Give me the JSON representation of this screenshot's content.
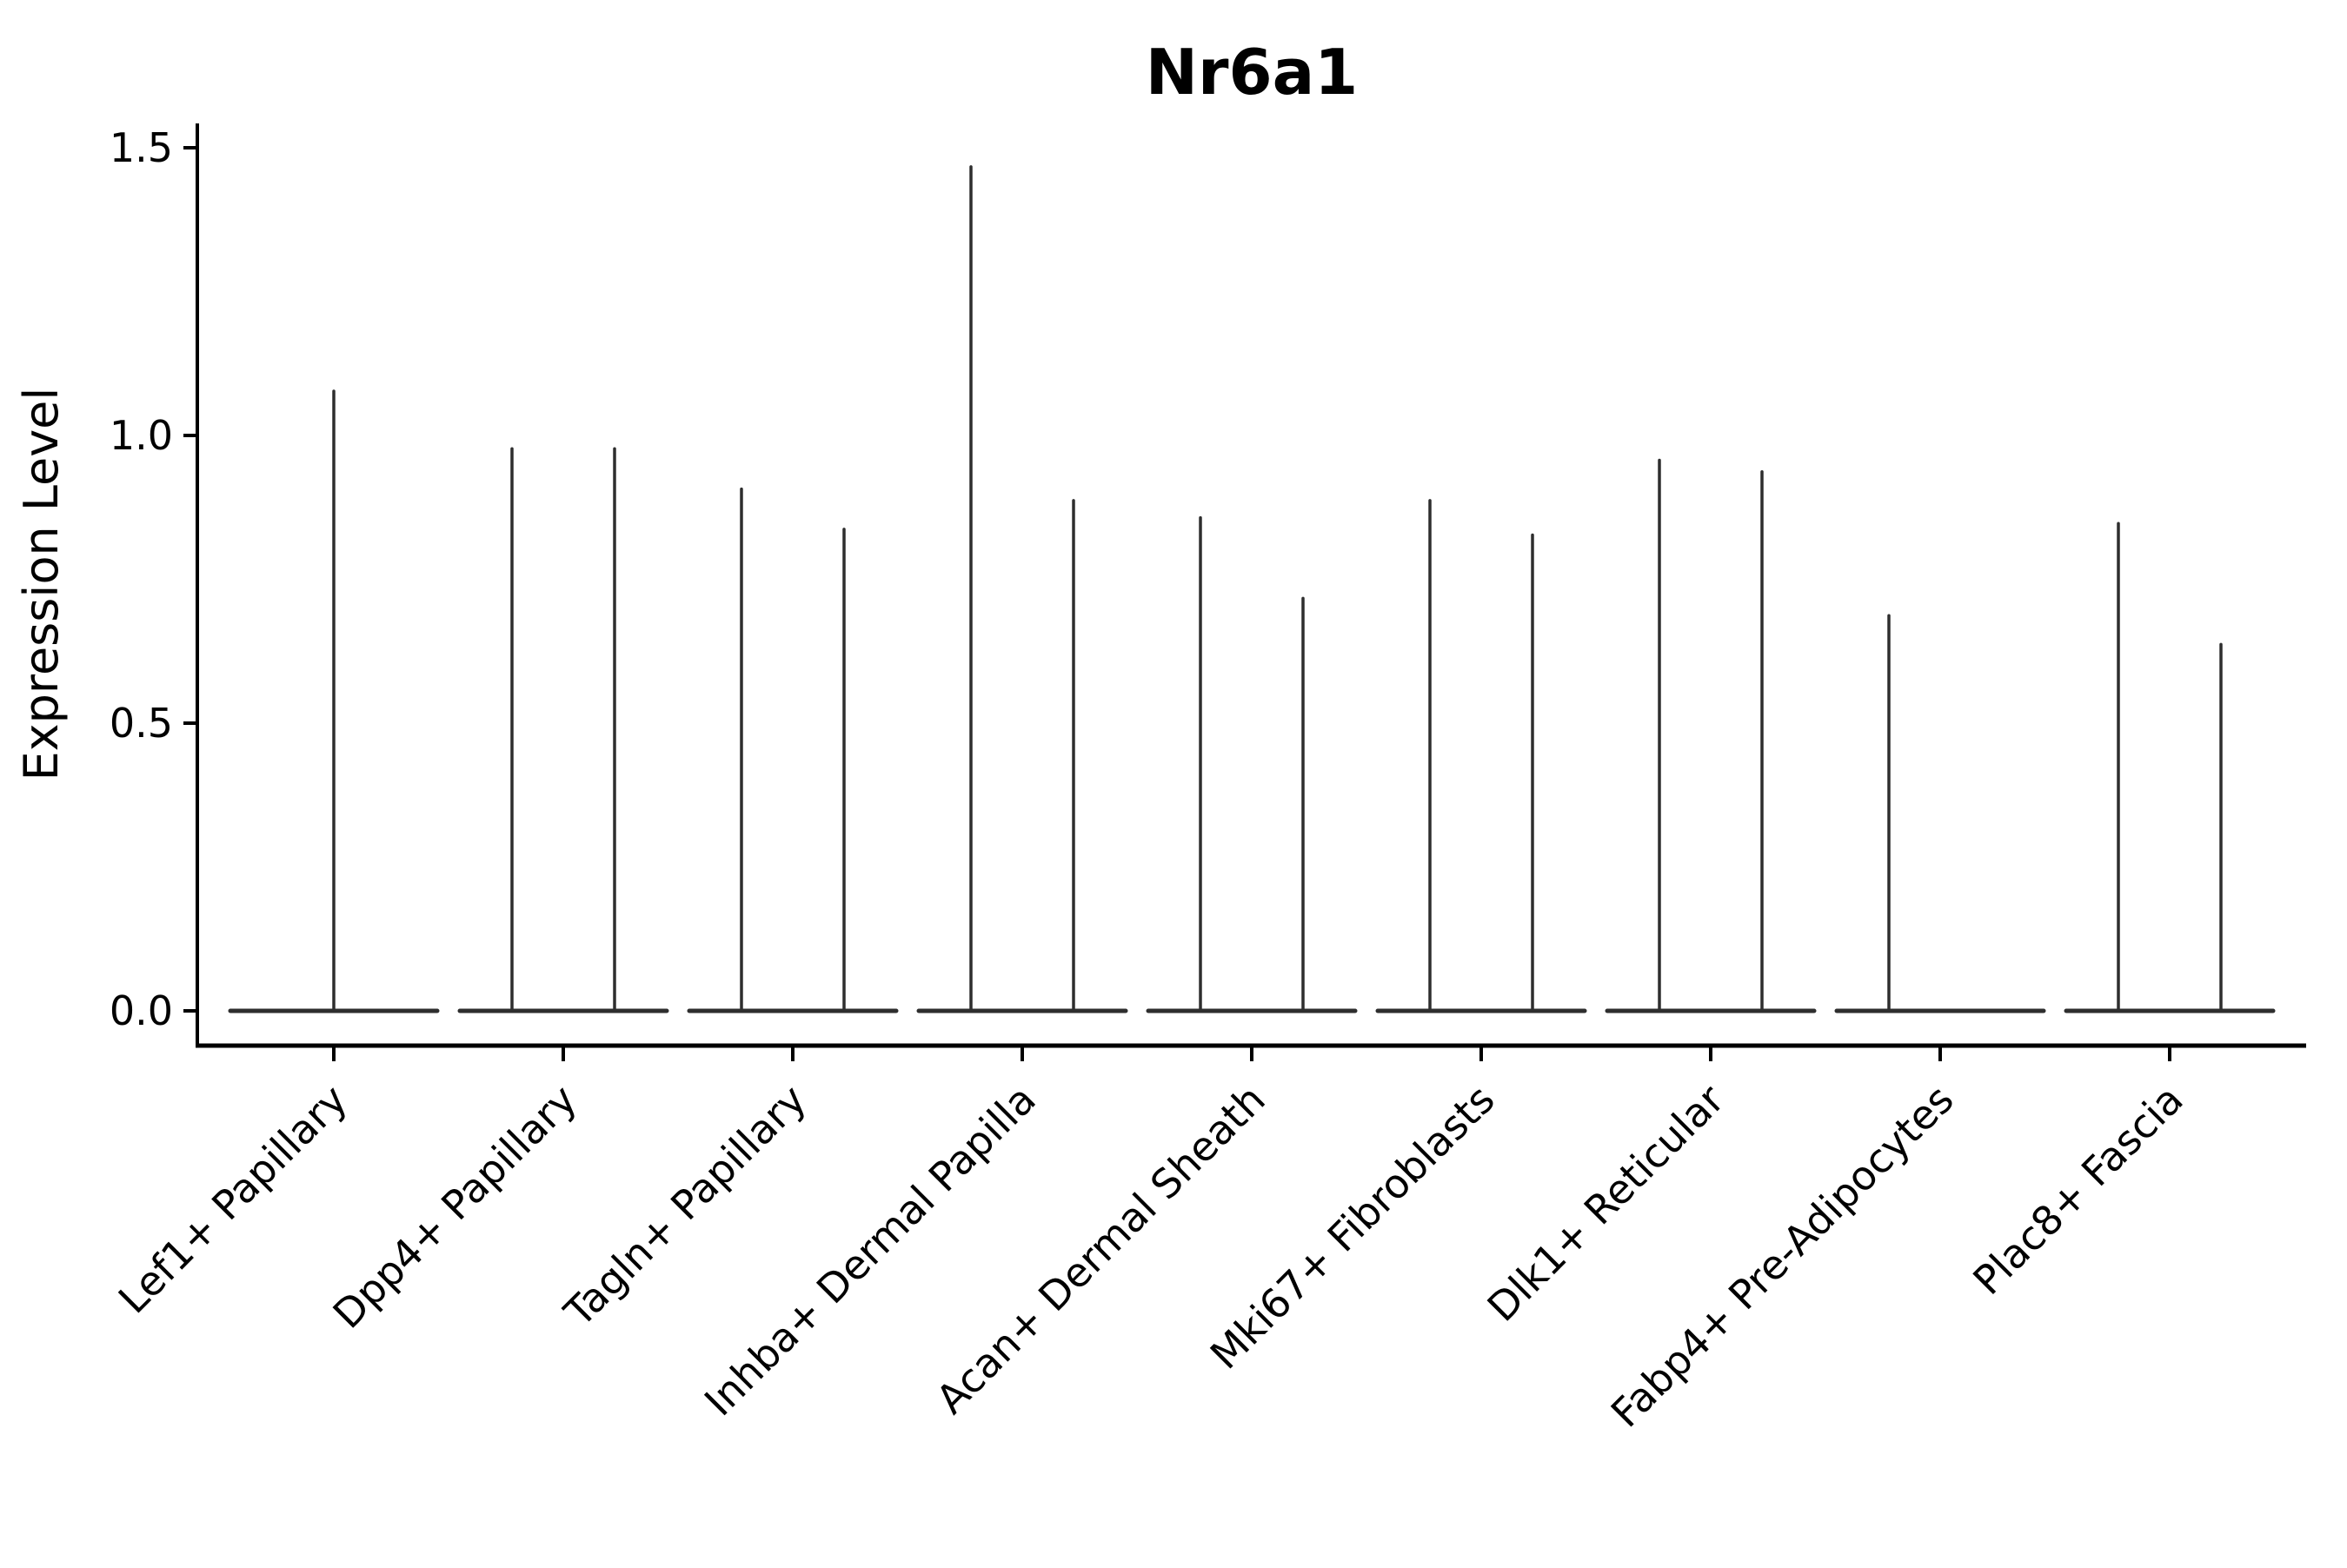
{
  "figure": {
    "title": "Nr6a1",
    "background": "#ffffff"
  },
  "chart_data": {
    "type": "violin",
    "title": "Nr6a1",
    "xlabel": "",
    "ylabel": "Expression Level",
    "ylim": [
      -0.06,
      1.54
    ],
    "yticks": [
      0.0,
      0.5,
      1.0,
      1.5
    ],
    "ytick_labels": [
      "0.0",
      "0.5",
      "1.0",
      "1.5"
    ],
    "grid": false,
    "legend": "none",
    "categories": [
      "Lef1+ Papillary",
      "Dpp4+ Papillary",
      "Tagln+ Papillary",
      "Inhba+ Dermal Papilla",
      "Acan+ Dermal Sheath",
      "Mki67+ Fibroblasts",
      "Dlk1+ Reticular",
      "Fabp4+ Pre-Adipocytes",
      "Plac8+ Fascia"
    ],
    "series": [
      {
        "category": "Lef1+ Papillary",
        "violins": [
          {
            "position": "center",
            "max": 1.08,
            "base": 0.0
          }
        ]
      },
      {
        "category": "Dpp4+ Papillary",
        "violins": [
          {
            "position": "left",
            "max": 0.98,
            "base": 0.0
          },
          {
            "position": "right",
            "max": 0.98,
            "base": 0.0
          }
        ]
      },
      {
        "category": "Tagln+ Papillary",
        "violins": [
          {
            "position": "left",
            "max": 0.91,
            "base": 0.0
          },
          {
            "position": "right",
            "max": 0.84,
            "base": 0.0
          }
        ]
      },
      {
        "category": "Inhba+ Dermal Papilla",
        "violins": [
          {
            "position": "left",
            "max": 1.47,
            "base": 0.0
          },
          {
            "position": "right",
            "max": 0.89,
            "base": 0.0
          }
        ]
      },
      {
        "category": "Acan+ Dermal Sheath",
        "violins": [
          {
            "position": "left",
            "max": 0.86,
            "base": 0.0
          },
          {
            "position": "right",
            "max": 0.72,
            "base": 0.0
          }
        ]
      },
      {
        "category": "Mki67+ Fibroblasts",
        "violins": [
          {
            "position": "left",
            "max": 0.89,
            "base": 0.0
          },
          {
            "position": "right",
            "max": 0.83,
            "base": 0.0
          }
        ]
      },
      {
        "category": "Dlk1+ Reticular",
        "violins": [
          {
            "position": "left",
            "max": 0.96,
            "base": 0.0
          },
          {
            "position": "right",
            "max": 0.94,
            "base": 0.0
          }
        ]
      },
      {
        "category": "Fabp4+ Pre-Adipocytes",
        "violins": [
          {
            "position": "left",
            "max": 0.69,
            "base": 0.0
          }
        ]
      },
      {
        "category": "Plac8+ Fascia",
        "violins": [
          {
            "position": "left",
            "max": 0.85,
            "base": 0.0
          },
          {
            "position": "right",
            "max": 0.64,
            "base": 0.0
          }
        ]
      }
    ],
    "style": {
      "violin_line_color": "#2e2e2e",
      "axis_color": "#000000",
      "background": "#ffffff"
    }
  }
}
